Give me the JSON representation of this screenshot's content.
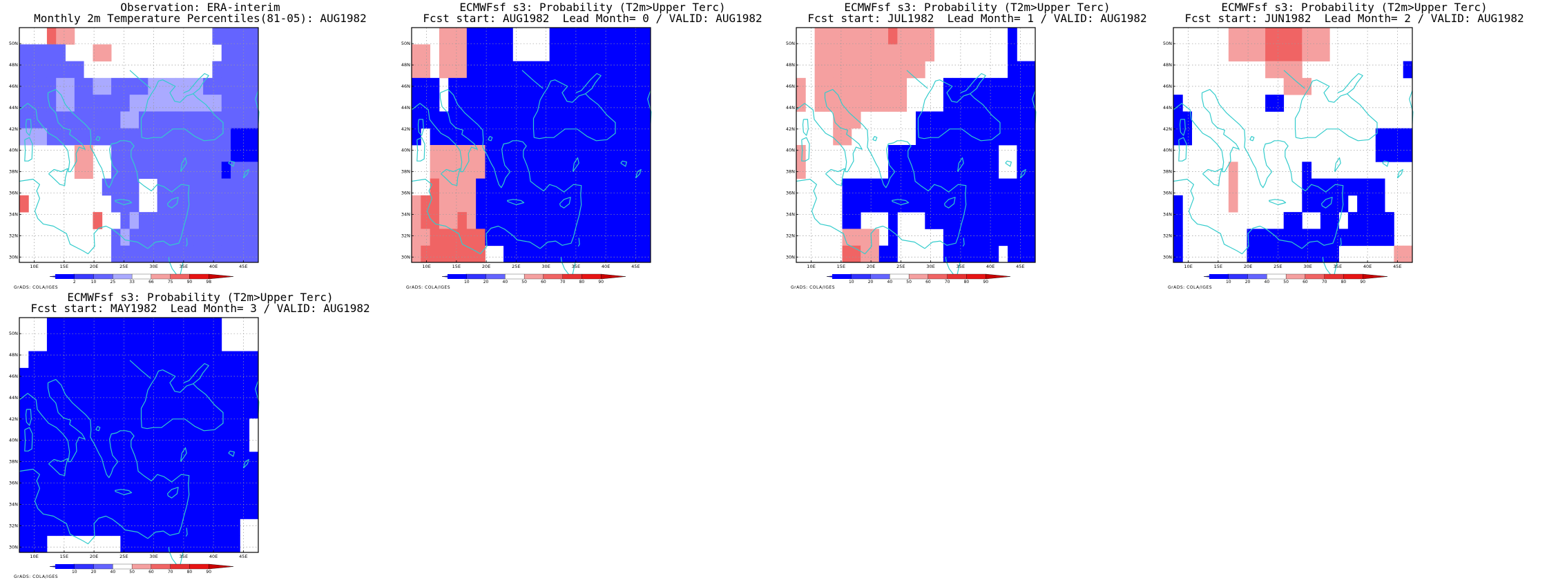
{
  "colors": {
    "deep_blue": "#0000ff",
    "mid_blue": "#6464ff",
    "light_blue": "#aaaaff",
    "pale_red": "#f5a0a0",
    "mid_red": "#f06464",
    "deep_red": "#e61414",
    "coast": "#33cccc",
    "grid": "#9a9a9a"
  },
  "map": {
    "lat_labels": [
      "50N",
      "48N",
      "46N",
      "44N",
      "42N",
      "40N",
      "38N",
      "36N",
      "34N",
      "32N",
      "30N"
    ],
    "lon_labels": [
      "10E",
      "15E",
      "20E",
      "25E",
      "30E",
      "35E",
      "40E",
      "45E"
    ]
  },
  "panels": [
    {
      "title1": "Observation: ERA-interim",
      "title2": "Monthly 2m Temperature Percentiles(81-05): AUG1982",
      "legend_type": "percentile",
      "legend_labels": [
        "2",
        "10",
        "25",
        "33",
        "66",
        "75",
        "90",
        "98"
      ],
      "credit": "GrADS: COLA/IGES",
      "rows": [
        "000211000000000000000MMMMM",
        "MMMMM00011000000000000MMMM",
        "MMMMMMM00000000000000MMMMM",
        "MMMMLLMMLLMMMMLLLLLLMMMMMM",
        "MMMMLLMMMMMMLLLLLLLLLLMMMM",
        "MMMMMMMMMMMLLMMMMMMMMMMMMM",
        "LLLMMMMMMMMMMMMMMMMMMMMDDD",
        "0000001100MMMMMMMMMMMMMDDD",
        "0000001100MMMMMMMMMMMMDMMM",
        "000000000MMMM00MMMMMMMMMMM",
        "2000000000MMM00MMMMMMMMMMM",
        "00000000200MLMMMMMMMMMMMMM",
        "0000000000MLMMMMMMMMMMMMMM",
        "0000000000MMMMMMMMMMMMMMMM"
      ]
    },
    {
      "title1": "ECMWFsf s3: Probability (T2m>Upper Terc)",
      "title2": "Fcst start: AUG1982  Lead Month= 0 / VALID: AUG1982",
      "legend_type": "probability",
      "legend_labels": [
        "10",
        "20",
        "40",
        "50",
        "60",
        "70",
        "80",
        "90"
      ],
      "credit": "GrADS: COLA/IGES",
      "rows": [
        "000111DDDDD0000DDDDDDDDDDD",
        "110111DDDDD0000DDDDDDDDDDD",
        "110111DDDDDDDDDDDDDDDDDDDD",
        "DDD0DDDDDDDDDDDDDDDDDDDDDD",
        "DDD0DDDDDDDDDDDDDDDDDDDDDD",
        "DDDDDDDDDDDDDDDDDDDDDDDDDD",
        "D0DDDDDDDDDDDDDDDDDDDDDDDD",
        "00111111DDDDDDDDDDDDDDDDDD",
        "00111111DDDDDDDDDDDDDDDDDD",
        "0021111DDDDDDDDDDDDDDDDDDD",
        "1221111DDDDDDDDDDDDDDDDDDD",
        "1221121DDDDDDDDDDDDDDDDDDD",
        "11222222DDDDDDDDDDDDDDDDDD",
        "1222222200DDDDDDDDDDDDDDDD"
      ]
    },
    {
      "title1": "ECMWFsf s3: Probability (T2m>Upper Terc)",
      "title2": "Fcst start: JUL1982  Lead Month= 1 / VALID: AUG1982",
      "legend_type": "probability",
      "legend_labels": [
        "10",
        "20",
        "40",
        "50",
        "60",
        "70",
        "80",
        "90"
      ],
      "credit": "GrADS: COLA/IGES",
      "rows": [
        "00111111112111100000000D00",
        "00111111111111100000000D00",
        "00111111111111000000000DDD",
        "1011111111110000DDDDDDDDDD",
        "1011111111110000DDDDDDDDDD",
        "0000111000000DDDDDDDDDDDDD",
        "0000110000000DDDDDDDDDDDDD",
        "1000000000DDDDDDDDDDDD00DD",
        "1000000000DDDDDDDDDDDD00DD",
        "00000DDDDDDDDDDDDDDDDDDDDD",
        "00000DDDDDDDDDDDDDDDDDDDDD",
        "00000DD000D000DDDDDDDDDDDD",
        "0000011110D00000DDDDDDDDDD",
        "000002211DD00000DDDDDD0DDD"
      ]
    },
    {
      "title1": "ECMWFsf s3: Probability (T2m>Upper Terc)",
      "title2": "Fcst start: JUN1982  Lead Month= 2 / VALID: AUG1982",
      "legend_type": "probability",
      "legend_labels": [
        "10",
        "20",
        "40",
        "50",
        "60",
        "70",
        "80",
        "90"
      ],
      "credit": "GrADS: COLA/IGES",
      "rows": [
        "00000011112222111000000000",
        "00000011112222111000000000",
        "0000000000111100000000000D",
        "00000000000011100000000000",
        "D000000000DD00000000000000",
        "DD000000000000000000000000",
        "DD00000000000000000000DDDD",
        "0000000000000000000000DDDD",
        "00000010000000D00000000000",
        "00000010000000DDDDDDDDD000",
        "D0000010000000DDDDD0DDD000",
        "D00000000000DD00DD0DDDDD00",
        "D0000000DDDDDDDDDDDDDDDD00",
        "D0000000DDDDDDDDDD00000011"
      ]
    },
    {
      "title1": "ECMWFsf s3: Probability (T2m>Upper Terc)",
      "title2": "Fcst start: MAY1982  Lead Month= 3 / VALID: AUG1982",
      "legend_type": "probability",
      "legend_labels": [
        "10",
        "20",
        "40",
        "50",
        "60",
        "70",
        "80",
        "90"
      ],
      "credit": "GrADS: COLA/IGES",
      "rows": [
        "000DDDDDDDDDDDDDDDDDDD0000",
        "000DDDDDDDDDDDDDDDDDDD0000",
        "0DDDDDDDDDDDDDDDDDDDDDDDDD",
        "DDDDDDDDDDDDDDDDDDDDDDDDDD",
        "DDDDDDDDDDDDDDDDDDDDDDDDDD",
        "DDDDDDDDDDDDDDDDDDDDDDDDDD",
        "DDDDDDDDDDDDDDDDDDDDDDDDD0",
        "DDDDDDDDDDDDDDDDDDDDDDDDD0",
        "DDDDDDDDDDDDDDDDDDDDDDDDDD",
        "DDDDDDDDDDDDDDDDDDDDDDDDDD",
        "DDDDDDDDDDDDDDDDDDDDDDDDDD",
        "DDDDDDDDDDDDDDDDDDDDDDDDDD",
        "DDDDDDDDDDDDDDDDDDDDDDDD00",
        "DDD00000000DDDDDDDDDDDDD00"
      ]
    }
  ]
}
